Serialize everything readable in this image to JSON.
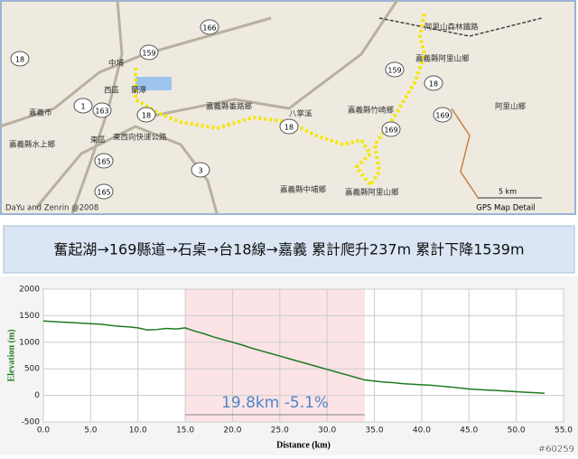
{
  "map": {
    "labels": [
      "中埔",
      "西區",
      "蘭潭",
      "東區",
      "嘉義市",
      "東西向快速公路",
      "嘉義縣水上鄉",
      "嘉義縣番路鄉",
      "八掌溪",
      "嘉義縣竹崎鄉",
      "嘉義縣中埔鄉",
      "嘉義縣阿里山鄉",
      "阿里山森林鐵路",
      "嘉義縣阿里山鄉",
      "阿里山鄉"
    ],
    "shields": [
      "166",
      "159",
      "18",
      "1",
      "163",
      "165",
      "165",
      "18",
      "3",
      "159",
      "18",
      "18",
      "169",
      "169"
    ],
    "credit": "DaYu and Zenrin @2008",
    "scale": "5 km",
    "detail": "GPS Map Detail"
  },
  "banner": "奮起湖→169縣道→石桌→台18線→嘉義  累計爬升237m 累計下降1539m",
  "watermark": "#60259",
  "chart_data": {
    "type": "line",
    "xlabel": "Distance (km)",
    "ylabel": "Elevation (m)",
    "color": "#1f7a1f",
    "grid": true,
    "xlim": [
      0,
      55
    ],
    "ylim": [
      -500,
      2000
    ],
    "xticks": [
      {
        "value": 0,
        "label": "0.0"
      },
      {
        "value": 5,
        "label": "5.0"
      },
      {
        "value": 10,
        "label": "10.0"
      },
      {
        "value": 15,
        "label": "15.0"
      },
      {
        "value": 20,
        "label": "20.0"
      },
      {
        "value": 25,
        "label": "25.0"
      },
      {
        "value": 30,
        "label": "30.0"
      },
      {
        "value": 35,
        "label": "35.0"
      },
      {
        "value": 40,
        "label": "40.0"
      },
      {
        "value": 45,
        "label": "45.0"
      },
      {
        "value": 50,
        "label": "50.0"
      },
      {
        "value": 55,
        "label": "55.0"
      }
    ],
    "yticks": [
      -500,
      0,
      500,
      1000,
      1500,
      2000
    ],
    "highlight": [
      15,
      34
    ],
    "annotation": "19.8km  -5.1%",
    "x": [
      0,
      1,
      2,
      3,
      4,
      5,
      6,
      7,
      8,
      9,
      10,
      11,
      12,
      13,
      14,
      15,
      16,
      17,
      18,
      19,
      20,
      21,
      22,
      23,
      24,
      25,
      26,
      27,
      28,
      29,
      30,
      31,
      32,
      33,
      34,
      35,
      36,
      37,
      38,
      39,
      40,
      41,
      42,
      43,
      44,
      45,
      46,
      47,
      48,
      49,
      50,
      51,
      52,
      53
    ],
    "values": [
      1400,
      1390,
      1380,
      1370,
      1360,
      1350,
      1340,
      1320,
      1300,
      1290,
      1270,
      1230,
      1240,
      1260,
      1250,
      1270,
      1210,
      1160,
      1100,
      1050,
      1000,
      950,
      890,
      840,
      790,
      740,
      690,
      640,
      590,
      540,
      490,
      440,
      390,
      340,
      290,
      270,
      250,
      240,
      220,
      210,
      200,
      190,
      175,
      160,
      140,
      120,
      110,
      100,
      90,
      80,
      70,
      60,
      50,
      40
    ]
  }
}
